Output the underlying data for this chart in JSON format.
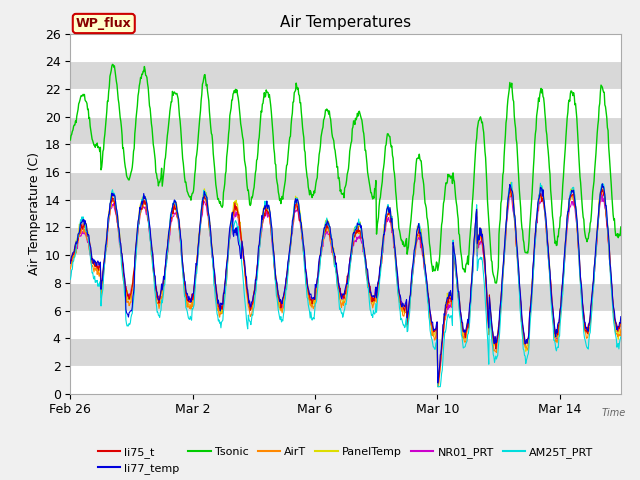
{
  "title": "Air Temperatures",
  "xlabel": "Time",
  "ylabel": "Air Temperature (C)",
  "ylim": [
    0,
    26
  ],
  "background_color": "#f0f0f0",
  "plot_bg_color": "#d8d8d8",
  "grid_color": "#ffffff",
  "xtick_labels": [
    "Feb 26",
    "Mar 2",
    "Mar 6",
    "Mar 10",
    "Mar 14"
  ],
  "xtick_positions": [
    0,
    4,
    8,
    12,
    16
  ],
  "ytick_values": [
    0,
    2,
    4,
    6,
    8,
    10,
    12,
    14,
    16,
    18,
    20,
    22,
    24,
    26
  ],
  "series": {
    "li75_t": {
      "color": "#dd0000",
      "lw": 0.8
    },
    "li77_temp": {
      "color": "#0000dd",
      "lw": 0.8
    },
    "Tsonic": {
      "color": "#00cc00",
      "lw": 1.0
    },
    "AirT": {
      "color": "#ff8800",
      "lw": 0.8
    },
    "PanelTemp": {
      "color": "#dddd00",
      "lw": 0.8
    },
    "NR01_PRT": {
      "color": "#cc00cc",
      "lw": 0.8
    },
    "AM25T_PRT": {
      "color": "#00dddd",
      "lw": 0.8
    }
  },
  "wp_flux_box": {
    "text": "WP_flux",
    "facecolor": "#ffffcc",
    "edgecolor": "#cc0000",
    "textcolor": "#880000",
    "fontsize": 9
  }
}
